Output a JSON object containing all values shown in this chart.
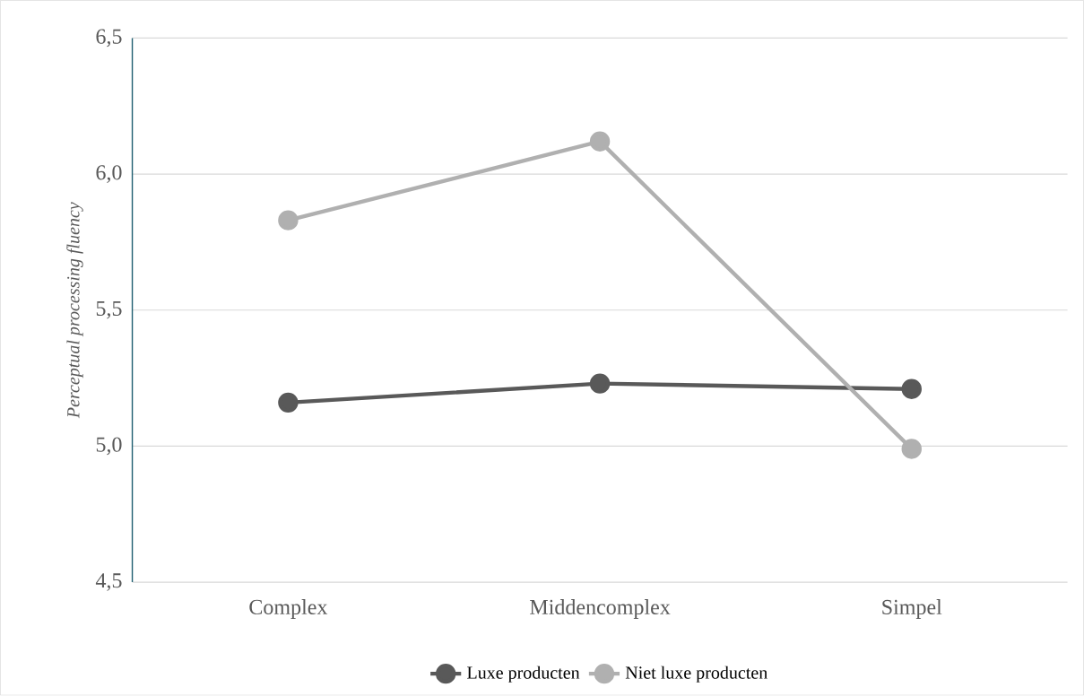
{
  "chart_data": {
    "type": "line",
    "ylabel": "Perceptual processing fluency",
    "categories": [
      "Complex",
      "Middencomplex",
      "Simpel"
    ],
    "series": [
      {
        "name": "Luxe producten",
        "color": "#595959",
        "values": [
          5.16,
          5.23,
          5.21
        ]
      },
      {
        "name": "Niet luxe producten",
        "color": "#b0b0b0",
        "values": [
          5.83,
          6.12,
          4.99
        ]
      }
    ],
    "ylim": [
      4.5,
      6.5
    ],
    "yticks": [
      {
        "value": 4.5,
        "label": "4,5"
      },
      {
        "value": 5.0,
        "label": "5,0"
      },
      {
        "value": 5.5,
        "label": "5,5"
      },
      {
        "value": 6.0,
        "label": "6,0"
      },
      {
        "value": 6.5,
        "label": "6,5"
      }
    ],
    "grid": "y",
    "legend": "bottom",
    "marker": "circle",
    "line_style": "solid"
  }
}
